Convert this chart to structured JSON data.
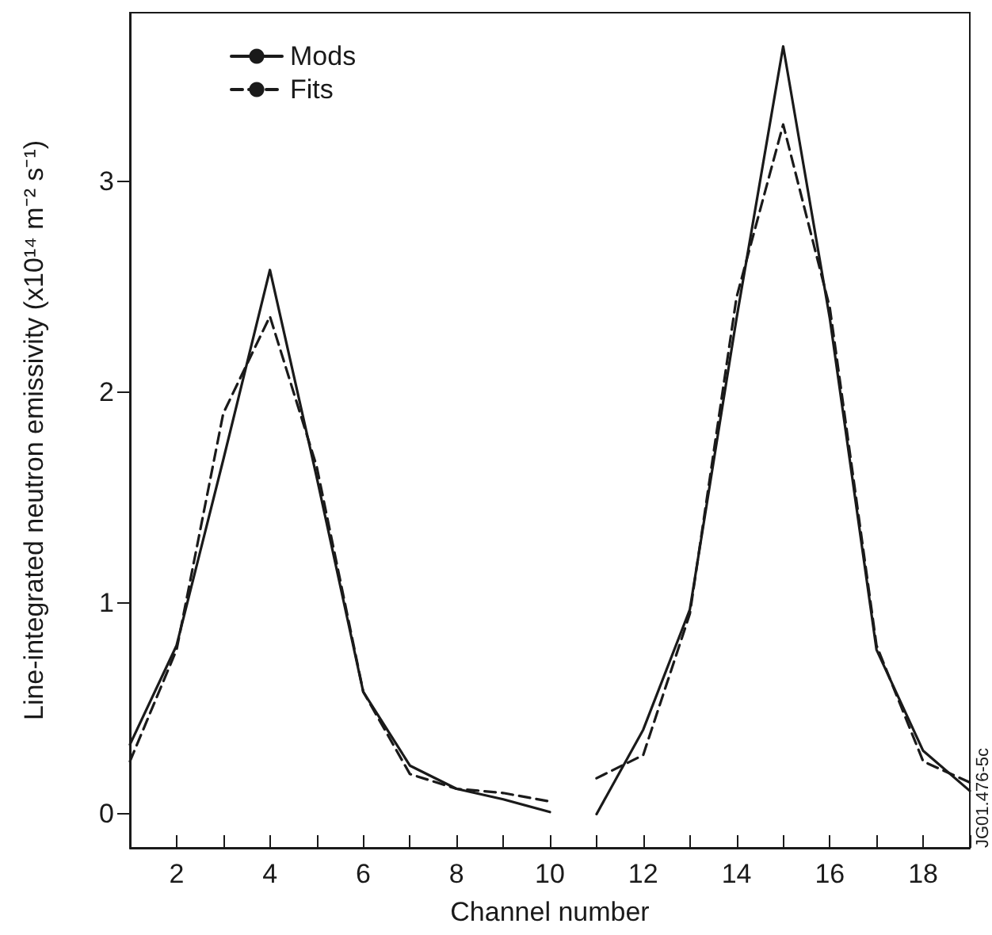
{
  "chart_data": {
    "type": "line",
    "xlabel": "Channel number",
    "ylabel": "Line-integrated neutron emissivity (x10¹⁴ m⁻² s⁻¹)",
    "x": [
      1,
      2,
      3,
      4,
      5,
      6,
      7,
      8,
      9,
      10,
      10.5,
      11,
      12,
      13,
      14,
      15,
      16,
      17,
      18,
      19
    ],
    "series": [
      {
        "name": "Mods",
        "color": "#1a1a1a",
        "line_style": "solid",
        "values": [
          0.33,
          0.8,
          1.68,
          2.58,
          1.6,
          0.58,
          0.23,
          0.12,
          0.07,
          0.01,
          null,
          0.0,
          0.4,
          0.97,
          2.35,
          3.64,
          2.35,
          0.78,
          0.3,
          0.11
        ]
      },
      {
        "name": "Fits",
        "color": "#1a1a1a",
        "line_style": "dashed",
        "values": [
          0.25,
          0.78,
          1.9,
          2.36,
          1.65,
          0.58,
          0.19,
          0.12,
          0.1,
          0.06,
          null,
          0.17,
          0.28,
          0.95,
          2.45,
          3.27,
          2.4,
          0.8,
          0.25,
          0.15
        ]
      }
    ],
    "xlim": [
      1,
      19
    ],
    "xticks": [
      {
        "value": 1,
        "label": null
      },
      2,
      {
        "value": 3,
        "label": null
      },
      4,
      {
        "value": 5,
        "label": null
      },
      6,
      {
        "value": 7,
        "label": null
      },
      8,
      {
        "value": 9,
        "label": null
      },
      10,
      {
        "value": 11,
        "label": null
      },
      12,
      {
        "value": 13,
        "label": null
      },
      14,
      {
        "value": 15,
        "label": null
      },
      16,
      {
        "value": 17,
        "label": null
      },
      18,
      {
        "value": 19,
        "label": null
      }
    ],
    "ylim": [
      -0.16,
      3.8
    ],
    "yticks": [
      0,
      1,
      2,
      3
    ],
    "grid": false,
    "legend": "top left",
    "marker": "none",
    "annotations": [
      "JG01.476-5c"
    ]
  }
}
